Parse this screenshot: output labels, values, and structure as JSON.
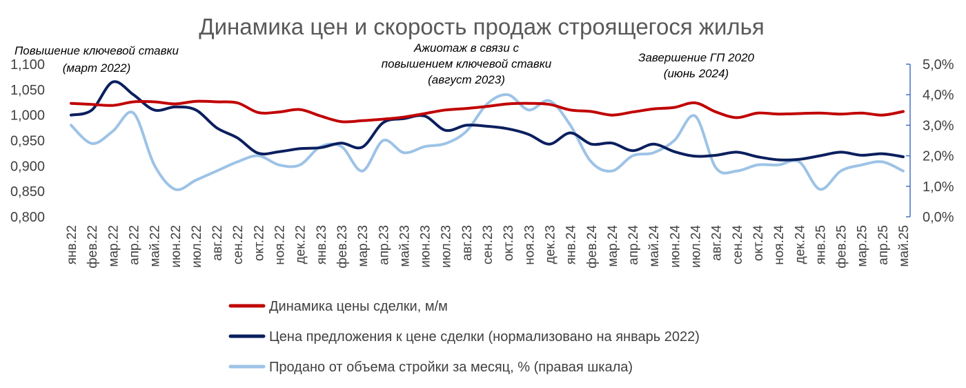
{
  "chart_data": {
    "type": "line",
    "title": "Динамика цен и скорость продаж строящегося жилья",
    "categories": [
      "янв.22",
      "фев.22",
      "мар.22",
      "апр.22",
      "май.22",
      "июн.22",
      "июл.22",
      "авг.22",
      "сен.22",
      "окт.22",
      "ноя.22",
      "дек.22",
      "янв.23",
      "фев.23",
      "мар.23",
      "апр.23",
      "май.23",
      "июн.23",
      "июл.23",
      "авг.23",
      "сен.23",
      "окт.23",
      "ноя.23",
      "дек.23",
      "янв.24",
      "фев.24",
      "мар.24",
      "апр.24",
      "май.24",
      "июн.24",
      "июл.24",
      "авг.24",
      "сен.24",
      "окт.24",
      "ноя.24",
      "дек.24",
      "янв.25",
      "фев.25",
      "мар.25",
      "апр.25",
      "май.25"
    ],
    "left_axis": {
      "min": 0.8,
      "max": 1.1,
      "ticks": [
        "0,800",
        "0,850",
        "0,900",
        "0,950",
        "1,000",
        "1,050",
        "1,100"
      ]
    },
    "right_axis": {
      "min": 0.0,
      "max": 5.0,
      "ticks": [
        "0,0%",
        "1,0%",
        "2,0%",
        "3,0%",
        "4,0%",
        "5,0%"
      ]
    },
    "series": [
      {
        "name": "Динамика цены сделки, м/м",
        "axis": "left",
        "color": "#C00000",
        "values": [
          1.023,
          1.021,
          1.019,
          1.026,
          1.026,
          1.022,
          1.027,
          1.026,
          1.024,
          1.005,
          1.006,
          1.011,
          0.998,
          0.987,
          0.989,
          0.992,
          0.996,
          1.003,
          1.01,
          1.013,
          1.017,
          1.022,
          1.023,
          1.021,
          1.01,
          1.007,
          1.0,
          1.006,
          1.012,
          1.015,
          1.024,
          1.006,
          0.995,
          1.004,
          1.002,
          1.003,
          1.004,
          1.002,
          1.004,
          1.0,
          1.007
        ]
      },
      {
        "name": "Цена предложения к цене сделки (нормализовано на январь 2022)",
        "axis": "left",
        "color": "#0B1F5E",
        "values": [
          1.0,
          1.01,
          1.065,
          1.04,
          1.01,
          1.016,
          1.01,
          0.975,
          0.955,
          0.925,
          0.928,
          0.934,
          0.936,
          0.945,
          0.937,
          0.985,
          0.993,
          0.998,
          0.97,
          0.98,
          0.978,
          0.973,
          0.962,
          0.943,
          0.965,
          0.943,
          0.945,
          0.93,
          0.943,
          0.928,
          0.919,
          0.921,
          0.927,
          0.918,
          0.912,
          0.913,
          0.92,
          0.927,
          0.921,
          0.924,
          0.918
        ]
      },
      {
        "name": "Продано от объема стройки за месяц, % (правая шкала)",
        "axis": "right",
        "color": "#9DC3E6",
        "values": [
          3.0,
          2.4,
          2.8,
          3.4,
          1.7,
          0.9,
          1.2,
          1.5,
          1.8,
          2.0,
          1.7,
          1.7,
          2.3,
          2.3,
          1.5,
          2.5,
          2.1,
          2.3,
          2.4,
          2.8,
          3.7,
          4.0,
          3.5,
          3.8,
          3.0,
          1.8,
          1.5,
          2.0,
          2.1,
          2.5,
          3.3,
          1.6,
          1.5,
          1.7,
          1.7,
          1.8,
          0.9,
          1.5,
          1.7,
          1.8,
          1.5
        ]
      }
    ],
    "annotations": [
      {
        "lines": [
          "Повышение ключевой ставки",
          "(март 2022)"
        ]
      },
      {
        "lines": [
          "Ажиотаж в связи с",
          "повышением ключевой ставки",
          "(август 2023)"
        ]
      },
      {
        "lines": [
          "Завершение ГП 2020",
          "(июнь 2024)"
        ]
      }
    ],
    "legend_position": "bottom",
    "grid": false
  }
}
